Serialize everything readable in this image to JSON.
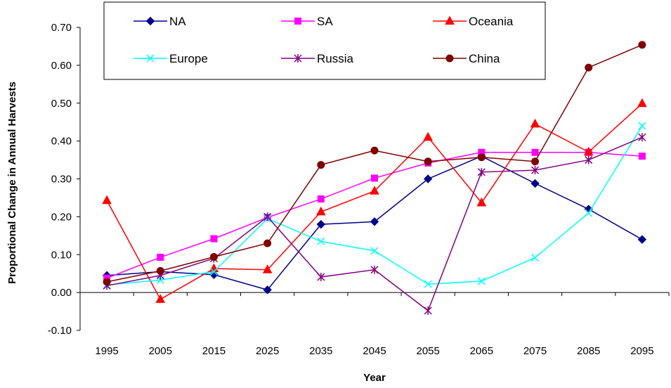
{
  "chart_data": {
    "type": "line",
    "title": "",
    "xlabel": "Year",
    "ylabel": "Proportional Change in Annual Harvests",
    "ylim": [
      -0.1,
      0.7
    ],
    "y_ticks": [
      "-0.10",
      "0.00",
      "0.10",
      "0.20",
      "0.30",
      "0.40",
      "0.50",
      "0.60",
      "0.70"
    ],
    "grid": false,
    "legend_position": "top",
    "categories": [
      "1995",
      "2005",
      "2015",
      "2025",
      "2035",
      "2045",
      "2055",
      "2065",
      "2075",
      "2085",
      "2095"
    ],
    "series": [
      {
        "name": "NA",
        "color": "#00008B",
        "marker": "diamond",
        "values": [
          0.045,
          0.055,
          0.047,
          0.007,
          0.18,
          0.187,
          0.3,
          0.36,
          0.288,
          0.22,
          0.14
        ]
      },
      {
        "name": "SA",
        "color": "#FF00FF",
        "marker": "square",
        "values": [
          0.038,
          0.093,
          0.142,
          0.198,
          0.247,
          0.302,
          0.342,
          0.37,
          0.37,
          0.37,
          0.36
        ]
      },
      {
        "name": "Oceania",
        "color": "#FF0000",
        "marker": "triangle",
        "values": [
          0.243,
          -0.018,
          0.063,
          0.06,
          0.213,
          0.268,
          0.41,
          0.237,
          0.445,
          0.371,
          0.499
        ]
      },
      {
        "name": "Europe",
        "color": "#00FFFF",
        "marker": "x",
        "values": [
          0.02,
          0.033,
          0.055,
          0.195,
          0.135,
          0.11,
          0.022,
          0.03,
          0.092,
          0.21,
          0.44
        ]
      },
      {
        "name": "Russia",
        "color": "#800080",
        "marker": "star",
        "values": [
          0.018,
          0.045,
          0.09,
          0.2,
          0.041,
          0.06,
          -0.048,
          0.318,
          0.323,
          0.35,
          0.41
        ]
      },
      {
        "name": "China",
        "color": "#800000",
        "marker": "circle",
        "values": [
          0.028,
          0.057,
          0.094,
          0.13,
          0.337,
          0.375,
          0.346,
          0.357,
          0.346,
          0.594,
          0.654
        ]
      }
    ]
  }
}
